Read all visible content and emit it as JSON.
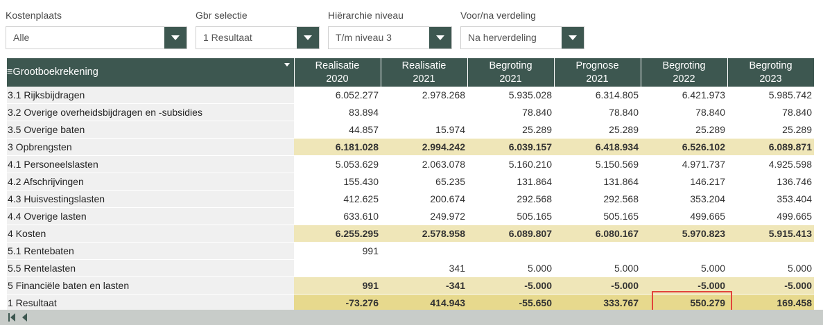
{
  "filters": [
    {
      "label": "Kostenplaats",
      "value": "Alle",
      "width": 262
    },
    {
      "label": "Gbr selectie",
      "value": "1 Resultaat",
      "width": 179
    },
    {
      "label": "Hiërarchie niveau",
      "value": "T/m niveau 3",
      "width": 179
    },
    {
      "label": "Voor/na verdeling",
      "value": "Na herverdeling",
      "width": 179
    }
  ],
  "table": {
    "first_header": "≡Grootboekrekening",
    "columns": [
      {
        "line1": "Realisatie",
        "line2": "2020"
      },
      {
        "line1": "Realisatie",
        "line2": "2021"
      },
      {
        "line1": "Begroting",
        "line2": "2021"
      },
      {
        "line1": "Prognose",
        "line2": "2021"
      },
      {
        "line1": "Begroting",
        "line2": "2022"
      },
      {
        "line1": "Begroting",
        "line2": "2023"
      }
    ],
    "rows": [
      {
        "label": "3.1 Rijksbijdragen",
        "type": "normal",
        "values": [
          "6.052.277",
          "2.978.268",
          "5.935.028",
          "6.314.805",
          "6.421.973",
          "5.985.742"
        ]
      },
      {
        "label": "3.2 Overige overheidsbijdragen en -subsidies",
        "type": "normal",
        "values": [
          "83.894",
          "",
          "78.840",
          "78.840",
          "78.840",
          "78.840"
        ]
      },
      {
        "label": "3.5 Overige baten",
        "type": "normal",
        "values": [
          "44.857",
          "15.974",
          "25.289",
          "25.289",
          "25.289",
          "25.289"
        ]
      },
      {
        "label": "3 Opbrengsten",
        "type": "sub",
        "values": [
          "6.181.028",
          "2.994.242",
          "6.039.157",
          "6.418.934",
          "6.526.102",
          "6.089.871"
        ]
      },
      {
        "label": "4.1 Personeelslasten",
        "type": "normal",
        "values": [
          "5.053.629",
          "2.063.078",
          "5.160.210",
          "5.150.569",
          "4.971.737",
          "4.925.598"
        ]
      },
      {
        "label": "4.2 Afschrijvingen",
        "type": "normal",
        "values": [
          "155.430",
          "65.235",
          "131.864",
          "131.864",
          "146.217",
          "136.746"
        ]
      },
      {
        "label": "4.3 Huisvestingslasten",
        "type": "normal",
        "values": [
          "412.625",
          "200.674",
          "292.568",
          "292.568",
          "353.204",
          "353.404"
        ]
      },
      {
        "label": "4.4 Overige lasten",
        "type": "normal",
        "values": [
          "633.610",
          "249.972",
          "505.165",
          "505.165",
          "499.665",
          "499.665"
        ]
      },
      {
        "label": "4 Kosten",
        "type": "sub",
        "values": [
          "6.255.295",
          "2.578.958",
          "6.089.807",
          "6.080.167",
          "5.970.823",
          "5.915.413"
        ]
      },
      {
        "label": "5.1 Rentebaten",
        "type": "normal",
        "values": [
          "991",
          "",
          "",
          "",
          "",
          ""
        ]
      },
      {
        "label": "5.5 Rentelasten",
        "type": "normal",
        "values": [
          "",
          "341",
          "5.000",
          "5.000",
          "5.000",
          "5.000"
        ]
      },
      {
        "label": "5 Financiële baten en lasten",
        "type": "sub",
        "values": [
          "991",
          "-341",
          "-5.000",
          "-5.000",
          "-5.000",
          "-5.000"
        ]
      },
      {
        "label": "1 Resultaat",
        "type": "total",
        "values": [
          "-73.276",
          "414.943",
          "-55.650",
          "333.767",
          "550.279",
          "169.458"
        ]
      }
    ]
  },
  "colors": {
    "header_bg": "#3d5750",
    "subtotal_bg": "#efe6b8",
    "total_bg": "#e7d98d",
    "highlight": "#e2453c"
  }
}
